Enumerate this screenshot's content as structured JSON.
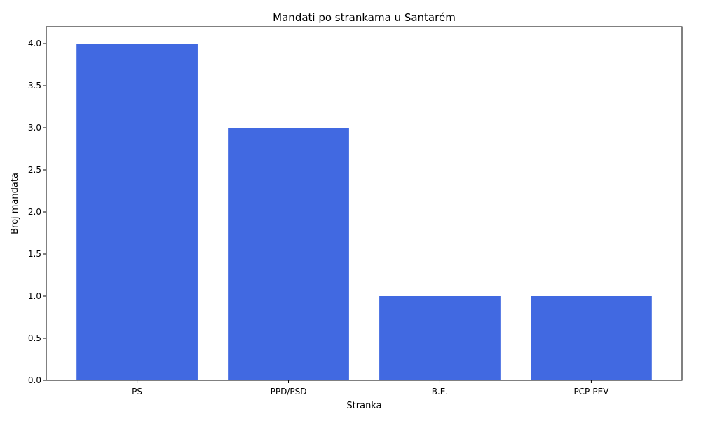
{
  "chart_data": {
    "type": "bar",
    "title": "Mandati po strankama u Santarém",
    "xlabel": "Stranka",
    "ylabel": "Broj mandata",
    "categories": [
      "PS",
      "PPD/PSD",
      "B.E.",
      "PCP-PEV"
    ],
    "values": [
      4,
      3,
      1,
      1
    ],
    "ylim": [
      0,
      4.2
    ],
    "yticks": [
      "0.0",
      "0.5",
      "1.0",
      "1.5",
      "2.0",
      "2.5",
      "3.0",
      "3.5",
      "4.0"
    ],
    "grid": false,
    "bar_color": "#4169e1"
  }
}
